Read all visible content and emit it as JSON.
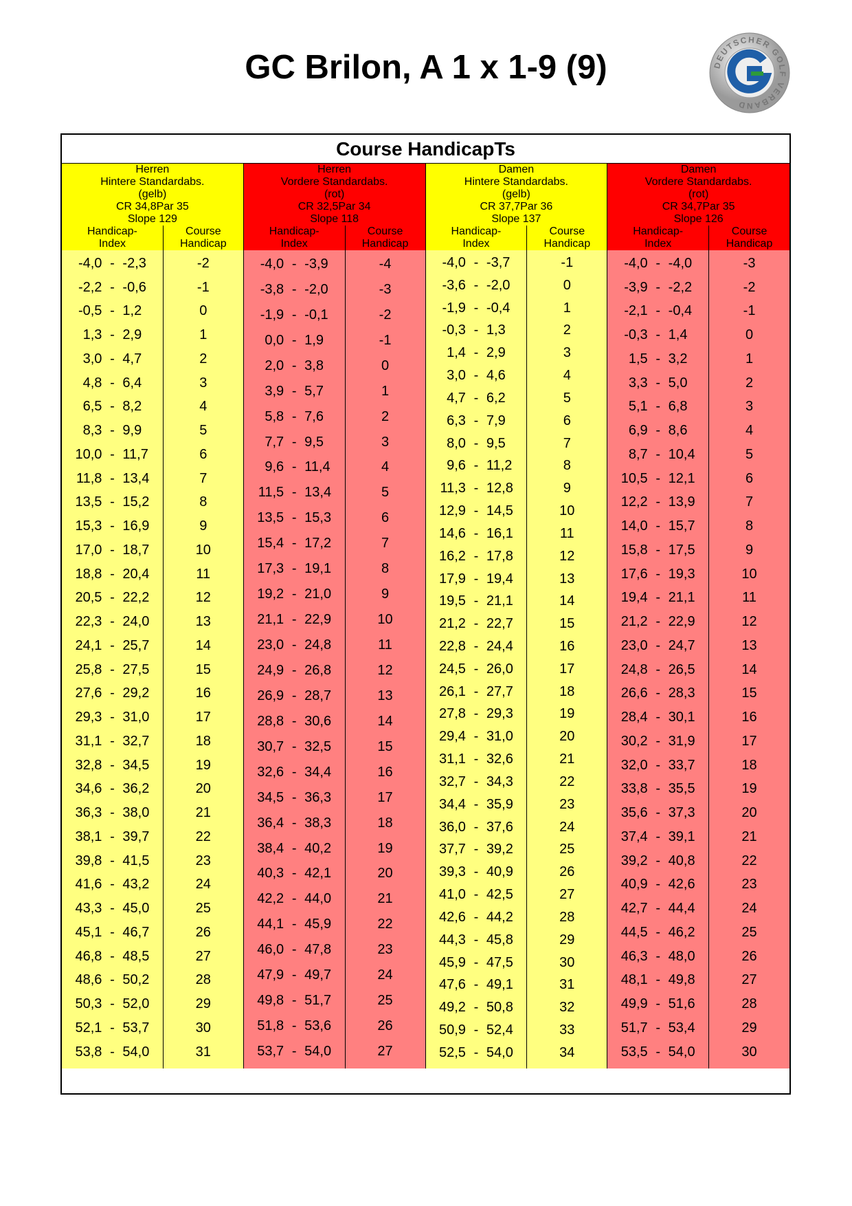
{
  "title": "GC Brilon, A 1 x 1-9 (9)",
  "logo": {
    "text": "DEUTSCHER GOLF VERBAND",
    "letter": "G",
    "colors": {
      "ring": "#b8b8b8",
      "g_blue": "#1f5fa8",
      "g_green": "#2e9a3a"
    }
  },
  "table": {
    "heading": "Course HandicapTs",
    "col_index_label": [
      "Handicap-",
      "Index"
    ],
    "col_ch_label": [
      "Course",
      "Handicap"
    ],
    "colors": {
      "yellow": "#ffff00",
      "yellow_light": "#ffff80",
      "red": "#ff0000",
      "red_light": "#ff8080"
    },
    "groups": [
      {
        "color": "yellow",
        "line1": "Herren",
        "line2": "Hintere Standardabs.",
        "line3": "(gelb)",
        "cr": "CR 34,8",
        "par": "Par 35",
        "slope": "Slope 129",
        "rows": [
          [
            "-4,0",
            "-2,3",
            "-2"
          ],
          [
            "-2,2",
            "-0,6",
            "-1"
          ],
          [
            "-0,5",
            "1,2",
            "0"
          ],
          [
            "1,3",
            "2,9",
            "1"
          ],
          [
            "3,0",
            "4,7",
            "2"
          ],
          [
            "4,8",
            "6,4",
            "3"
          ],
          [
            "6,5",
            "8,2",
            "4"
          ],
          [
            "8,3",
            "9,9",
            "5"
          ],
          [
            "10,0",
            "11,7",
            "6"
          ],
          [
            "11,8",
            "13,4",
            "7"
          ],
          [
            "13,5",
            "15,2",
            "8"
          ],
          [
            "15,3",
            "16,9",
            "9"
          ],
          [
            "17,0",
            "18,7",
            "10"
          ],
          [
            "18,8",
            "20,4",
            "11"
          ],
          [
            "20,5",
            "22,2",
            "12"
          ],
          [
            "22,3",
            "24,0",
            "13"
          ],
          [
            "24,1",
            "25,7",
            "14"
          ],
          [
            "25,8",
            "27,5",
            "15"
          ],
          [
            "27,6",
            "29,2",
            "16"
          ],
          [
            "29,3",
            "31,0",
            "17"
          ],
          [
            "31,1",
            "32,7",
            "18"
          ],
          [
            "32,8",
            "34,5",
            "19"
          ],
          [
            "34,6",
            "36,2",
            "20"
          ],
          [
            "36,3",
            "38,0",
            "21"
          ],
          [
            "38,1",
            "39,7",
            "22"
          ],
          [
            "39,8",
            "41,5",
            "23"
          ],
          [
            "41,6",
            "43,2",
            "24"
          ],
          [
            "43,3",
            "45,0",
            "25"
          ],
          [
            "45,1",
            "46,7",
            "26"
          ],
          [
            "46,8",
            "48,5",
            "27"
          ],
          [
            "48,6",
            "50,2",
            "28"
          ],
          [
            "50,3",
            "52,0",
            "29"
          ],
          [
            "52,1",
            "53,7",
            "30"
          ],
          [
            "53,8",
            "54,0",
            "31"
          ]
        ]
      },
      {
        "color": "red",
        "line1": "Herren",
        "line2": "Vordere Standardabs.",
        "line3": "(rot)",
        "cr": "CR 32,5",
        "par": "Par 34",
        "slope": "Slope 118",
        "rows": [
          [
            "-4,0",
            "-3,9",
            "-4"
          ],
          [
            "-3,8",
            "-2,0",
            "-3"
          ],
          [
            "-1,9",
            "-0,1",
            "-2"
          ],
          [
            "0,0",
            "1,9",
            "-1"
          ],
          [
            "2,0",
            "3,8",
            "0"
          ],
          [
            "3,9",
            "5,7",
            "1"
          ],
          [
            "5,8",
            "7,6",
            "2"
          ],
          [
            "7,7",
            "9,5",
            "3"
          ],
          [
            "9,6",
            "11,4",
            "4"
          ],
          [
            "11,5",
            "13,4",
            "5"
          ],
          [
            "13,5",
            "15,3",
            "6"
          ],
          [
            "15,4",
            "17,2",
            "7"
          ],
          [
            "17,3",
            "19,1",
            "8"
          ],
          [
            "19,2",
            "21,0",
            "9"
          ],
          [
            "21,1",
            "22,9",
            "10"
          ],
          [
            "23,0",
            "24,8",
            "11"
          ],
          [
            "24,9",
            "26,8",
            "12"
          ],
          [
            "26,9",
            "28,7",
            "13"
          ],
          [
            "28,8",
            "30,6",
            "14"
          ],
          [
            "30,7",
            "32,5",
            "15"
          ],
          [
            "32,6",
            "34,4",
            "16"
          ],
          [
            "34,5",
            "36,3",
            "17"
          ],
          [
            "36,4",
            "38,3",
            "18"
          ],
          [
            "38,4",
            "40,2",
            "19"
          ],
          [
            "40,3",
            "42,1",
            "20"
          ],
          [
            "42,2",
            "44,0",
            "21"
          ],
          [
            "44,1",
            "45,9",
            "22"
          ],
          [
            "46,0",
            "47,8",
            "23"
          ],
          [
            "47,9",
            "49,7",
            "24"
          ],
          [
            "49,8",
            "51,7",
            "25"
          ],
          [
            "51,8",
            "53,6",
            "26"
          ],
          [
            "53,7",
            "54,0",
            "27"
          ]
        ]
      },
      {
        "color": "yellow",
        "line1": "Damen",
        "line2": "Hintere Standardabs.",
        "line3": "(gelb)",
        "cr": "CR 37,7",
        "par": "Par 36",
        "slope": "Slope 137",
        "rows": [
          [
            "-4,0",
            "-3,7",
            "-1"
          ],
          [
            "-3,6",
            "-2,0",
            "0"
          ],
          [
            "-1,9",
            "-0,4",
            "1"
          ],
          [
            "-0,3",
            "1,3",
            "2"
          ],
          [
            "1,4",
            "2,9",
            "3"
          ],
          [
            "3,0",
            "4,6",
            "4"
          ],
          [
            "4,7",
            "6,2",
            "5"
          ],
          [
            "6,3",
            "7,9",
            "6"
          ],
          [
            "8,0",
            "9,5",
            "7"
          ],
          [
            "9,6",
            "11,2",
            "8"
          ],
          [
            "11,3",
            "12,8",
            "9"
          ],
          [
            "12,9",
            "14,5",
            "10"
          ],
          [
            "14,6",
            "16,1",
            "11"
          ],
          [
            "16,2",
            "17,8",
            "12"
          ],
          [
            "17,9",
            "19,4",
            "13"
          ],
          [
            "19,5",
            "21,1",
            "14"
          ],
          [
            "21,2",
            "22,7",
            "15"
          ],
          [
            "22,8",
            "24,4",
            "16"
          ],
          [
            "24,5",
            "26,0",
            "17"
          ],
          [
            "26,1",
            "27,7",
            "18"
          ],
          [
            "27,8",
            "29,3",
            "19"
          ],
          [
            "29,4",
            "31,0",
            "20"
          ],
          [
            "31,1",
            "32,6",
            "21"
          ],
          [
            "32,7",
            "34,3",
            "22"
          ],
          [
            "34,4",
            "35,9",
            "23"
          ],
          [
            "36,0",
            "37,6",
            "24"
          ],
          [
            "37,7",
            "39,2",
            "25"
          ],
          [
            "39,3",
            "40,9",
            "26"
          ],
          [
            "41,0",
            "42,5",
            "27"
          ],
          [
            "42,6",
            "44,2",
            "28"
          ],
          [
            "44,3",
            "45,8",
            "29"
          ],
          [
            "45,9",
            "47,5",
            "30"
          ],
          [
            "47,6",
            "49,1",
            "31"
          ],
          [
            "49,2",
            "50,8",
            "32"
          ],
          [
            "50,9",
            "52,4",
            "33"
          ],
          [
            "52,5",
            "54,0",
            "34"
          ]
        ]
      },
      {
        "color": "red",
        "line1": "Damen",
        "line2": "Vordere Standardabs.",
        "line3": "(rot)",
        "cr": "CR 34,7",
        "par": "Par 35",
        "slope": "Slope 126",
        "rows": [
          [
            "-4,0",
            "-4,0",
            "-3"
          ],
          [
            "-3,9",
            "-2,2",
            "-2"
          ],
          [
            "-2,1",
            "-0,4",
            "-1"
          ],
          [
            "-0,3",
            "1,4",
            "0"
          ],
          [
            "1,5",
            "3,2",
            "1"
          ],
          [
            "3,3",
            "5,0",
            "2"
          ],
          [
            "5,1",
            "6,8",
            "3"
          ],
          [
            "6,9",
            "8,6",
            "4"
          ],
          [
            "8,7",
            "10,4",
            "5"
          ],
          [
            "10,5",
            "12,1",
            "6"
          ],
          [
            "12,2",
            "13,9",
            "7"
          ],
          [
            "14,0",
            "15,7",
            "8"
          ],
          [
            "15,8",
            "17,5",
            "9"
          ],
          [
            "17,6",
            "19,3",
            "10"
          ],
          [
            "19,4",
            "21,1",
            "11"
          ],
          [
            "21,2",
            "22,9",
            "12"
          ],
          [
            "23,0",
            "24,7",
            "13"
          ],
          [
            "24,8",
            "26,5",
            "14"
          ],
          [
            "26,6",
            "28,3",
            "15"
          ],
          [
            "28,4",
            "30,1",
            "16"
          ],
          [
            "30,2",
            "31,9",
            "17"
          ],
          [
            "32,0",
            "33,7",
            "18"
          ],
          [
            "33,8",
            "35,5",
            "19"
          ],
          [
            "35,6",
            "37,3",
            "20"
          ],
          [
            "37,4",
            "39,1",
            "21"
          ],
          [
            "39,2",
            "40,8",
            "22"
          ],
          [
            "40,9",
            "42,6",
            "23"
          ],
          [
            "42,7",
            "44,4",
            "24"
          ],
          [
            "44,5",
            "46,2",
            "25"
          ],
          [
            "46,3",
            "48,0",
            "26"
          ],
          [
            "48,1",
            "49,8",
            "27"
          ],
          [
            "49,9",
            "51,6",
            "28"
          ],
          [
            "51,7",
            "53,4",
            "29"
          ],
          [
            "53,5",
            "54,0",
            "30"
          ]
        ]
      }
    ]
  }
}
